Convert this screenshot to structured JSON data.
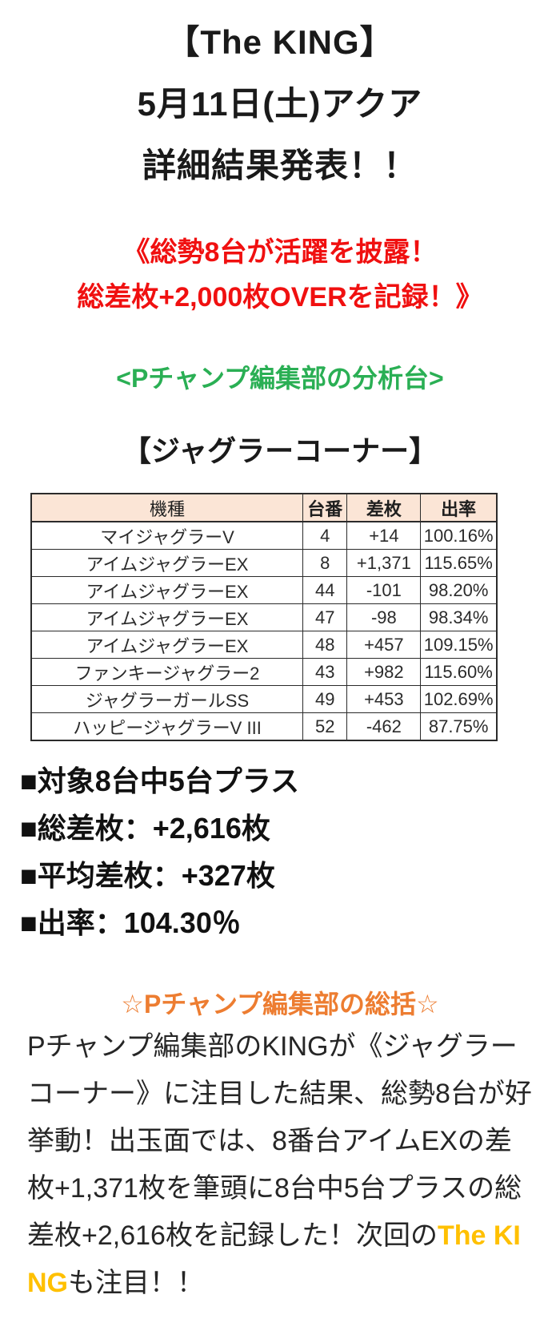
{
  "header": {
    "line1": "【The KING】",
    "line2": "5月11日(土)アクア",
    "line3": "詳細結果発表！！"
  },
  "banner": {
    "color": "#f01010",
    "line1": "《総勢8台が活躍を披露！",
    "line2": "総差枚+2,000枚OVERを記録！》"
  },
  "analysis_tag": {
    "color": "#2aaf54",
    "text": "<Pチャンプ編集部の分析台>"
  },
  "section": {
    "title": "【ジャグラーコーナー】"
  },
  "table": {
    "header_bg": "#fbe5d6",
    "border_color": "#2b2b2b",
    "columns": [
      "機種",
      "台番",
      "差枚",
      "出率"
    ],
    "rows": [
      [
        "マイジャグラーV",
        "4",
        "+14",
        "100.16%"
      ],
      [
        "アイムジャグラーEX",
        "8",
        "+1,371",
        "115.65%"
      ],
      [
        "アイムジャグラーEX",
        "44",
        "-101",
        "98.20%"
      ],
      [
        "アイムジャグラーEX",
        "47",
        "-98",
        "98.34%"
      ],
      [
        "アイムジャグラーEX",
        "48",
        "+457",
        "109.15%"
      ],
      [
        "ファンキージャグラー2",
        "43",
        "+982",
        "115.60%"
      ],
      [
        "ジャグラーガールSS",
        "49",
        "+453",
        "102.69%"
      ],
      [
        "ハッピージャグラーV III",
        "52",
        "-462",
        "87.75%"
      ]
    ]
  },
  "summary": {
    "item1": "■対象8台中5台プラス",
    "item2": "■総差枚：+2,616枚",
    "item3": "■平均差枚：+327枚",
    "item4": "■出率：104.30％"
  },
  "recap": {
    "heading": "☆Pチャンプ編集部の総括☆",
    "heading_color": "#ed7d31",
    "body_before": "Pチャンプ編集部のKINGが《ジャグラーコーナー》に注目した結果、総勢8台が好挙動！出玉面では、8番台アイムEXの差枚+1,371枚を筆頭に8台中5台プラスの総差枚+2,616枚を記録した！次回の",
    "body_highlight": "The KING",
    "highlight_color": "#ffc000",
    "body_after": "も注目！！"
  }
}
